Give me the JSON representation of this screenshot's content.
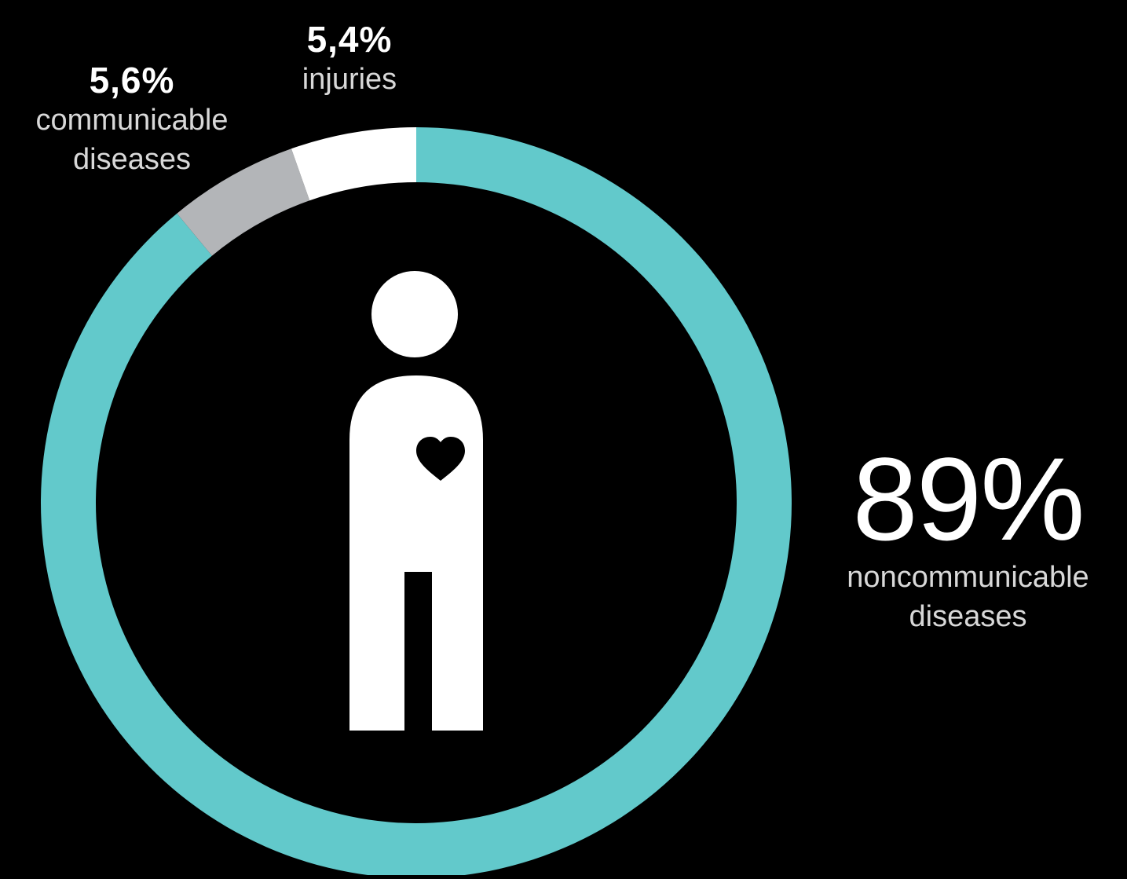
{
  "chart_data": {
    "type": "pie",
    "donut": true,
    "slices": [
      {
        "value": 89,
        "label_value": "89%",
        "label": [
          "noncommunicable",
          "diseases"
        ],
        "color": "#62c9cb"
      },
      {
        "value": 5.6,
        "label_value": "5,6%",
        "label": [
          "communicable",
          "diseases"
        ],
        "color": "#b3b5b8"
      },
      {
        "value": 5.4,
        "label_value": "5,4%",
        "label": [
          "injuries"
        ],
        "color": "#ffffff"
      }
    ],
    "legend": "none"
  },
  "icons": {
    "center": "person-with-heart-icon"
  },
  "colors": {
    "background": "#000000",
    "figure": "#ffffff",
    "heart": "#000000"
  }
}
